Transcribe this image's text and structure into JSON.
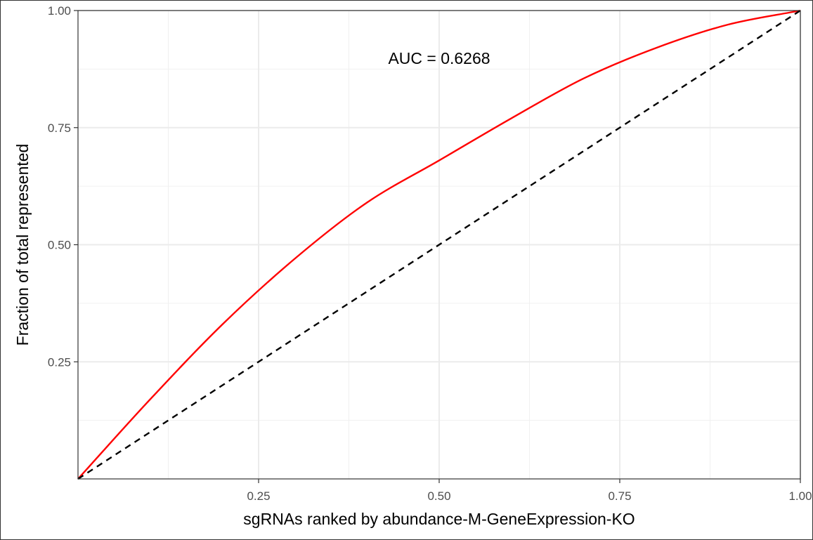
{
  "chart_data": {
    "type": "line",
    "xlabel": "sgRNAs ranked by abundance-M-GeneExpression-KO",
    "ylabel": "Fraction of total represented",
    "xlim": [
      0,
      1
    ],
    "ylim": [
      0,
      1
    ],
    "x_ticks": [
      0.25,
      0.5,
      0.75,
      1.0
    ],
    "x_tick_labels": [
      "0.25",
      "0.50",
      "0.75",
      "1.00"
    ],
    "y_ticks": [
      0.25,
      0.5,
      0.75,
      1.0
    ],
    "y_tick_labels": [
      "0.25",
      "0.50",
      "0.75",
      "1.00"
    ],
    "grid": true,
    "annotation": "AUC = 0.6268",
    "series": [
      {
        "color": "#ff0000",
        "style": "solid",
        "x": [
          0,
          0.1,
          0.2,
          0.3,
          0.4,
          0.5,
          0.6,
          0.7,
          0.8,
          0.9,
          1.0
        ],
        "y": [
          0,
          0.17,
          0.33,
          0.47,
          0.59,
          0.68,
          0.77,
          0.855,
          0.92,
          0.97,
          1.0
        ]
      },
      {
        "color": "#000000",
        "style": "dashed",
        "x": [
          0,
          1
        ],
        "y": [
          0,
          1
        ]
      }
    ]
  }
}
